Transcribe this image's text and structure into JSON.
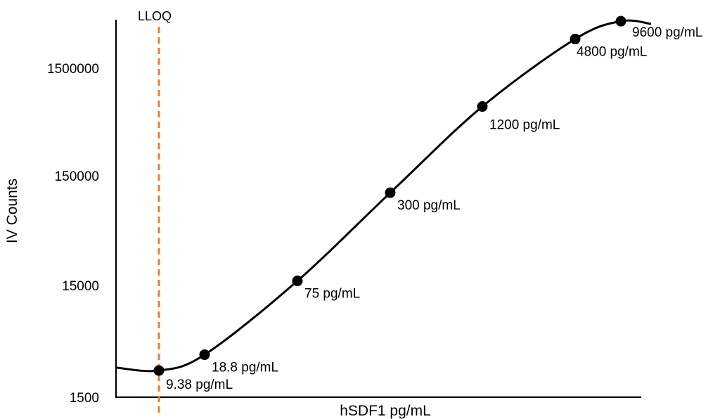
{
  "chart_data": {
    "type": "line",
    "title": "",
    "xlabel": "hSDF1 pg/mL",
    "ylabel": "IV Counts",
    "yscale": "log",
    "xscale": "log",
    "yticks": [
      {
        "value": 1500,
        "label": "1500"
      },
      {
        "value": 15000,
        "label": "15000"
      },
      {
        "value": 150000,
        "label": "150000"
      },
      {
        "value": 1500000,
        "label": "1500000"
      }
    ],
    "ylim": [
      1500,
      3700000
    ],
    "xlim": [
      5,
      13000
    ],
    "grid": false,
    "legend": "none",
    "series": [
      {
        "points": [
          {
            "x": 9.38,
            "y": 2600,
            "label": "9.38 pg/mL"
          },
          {
            "x": 18.8,
            "y": 3600,
            "label": "18.8 pg/mL"
          },
          {
            "x": 75,
            "y": 16500,
            "label": "75 pg/mL"
          },
          {
            "x": 300,
            "y": 105000,
            "label": "300 pg/mL"
          },
          {
            "x": 1200,
            "y": 660000,
            "label": "1200 pg/mL"
          },
          {
            "x": 4800,
            "y": 2800000,
            "label": "4800 pg/mL"
          },
          {
            "x": 9600,
            "y": 4100000,
            "label": "9600 pg/mL"
          }
        ]
      }
    ],
    "annotations": [
      {
        "type": "vline",
        "x": 9.38,
        "label": "LLOQ",
        "color": "#ED7D31",
        "style": "dashed"
      }
    ]
  }
}
